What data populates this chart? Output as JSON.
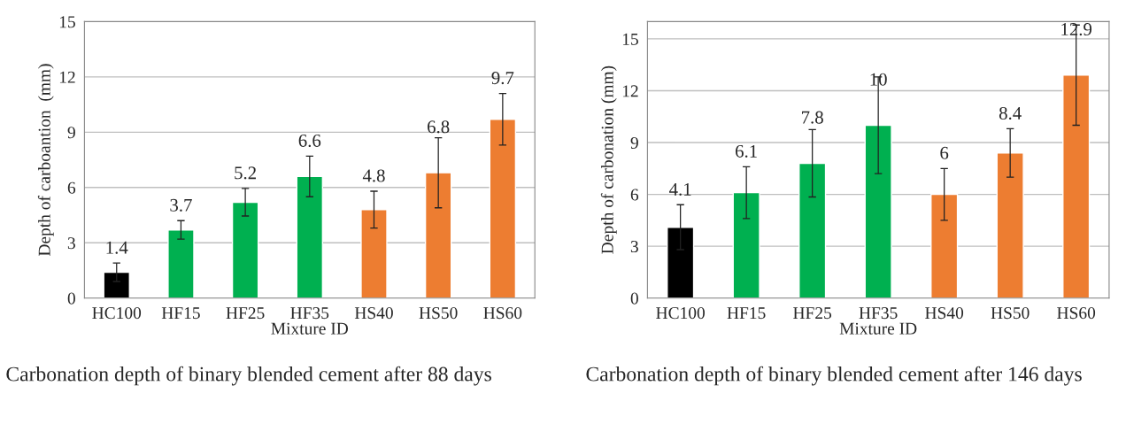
{
  "chart_data": [
    {
      "type": "bar",
      "xlabel": "Mixture ID",
      "ylabel": "Depth of carboantion  (mm)",
      "categories": [
        "HC100",
        "HF15",
        "HF25",
        "HF35",
        "HS40",
        "HS50",
        "HS60"
      ],
      "values": [
        1.4,
        3.7,
        5.2,
        6.6,
        4.8,
        6.8,
        9.7
      ],
      "errors": [
        0.5,
        0.5,
        0.75,
        1.1,
        1.0,
        1.9,
        1.4
      ],
      "colors": [
        "#000000",
        "#00b050",
        "#00b050",
        "#00b050",
        "#ed7d31",
        "#ed7d31",
        "#ed7d31"
      ],
      "ylim": [
        0,
        15
      ],
      "yticks": [
        0,
        3,
        6,
        9,
        12,
        15
      ],
      "grid": "y",
      "data_labels": true,
      "annotations": [
        "Carbonation depth of binary blended cement after 88 days"
      ]
    },
    {
      "type": "bar",
      "xlabel": "Mixture ID",
      "ylabel": "Depth of carbonation (mm)",
      "categories": [
        "HC100",
        "HF15",
        "HF25",
        "HF35",
        "HS40",
        "HS50",
        "HS60"
      ],
      "values": [
        4.1,
        6.1,
        7.8,
        10,
        6,
        8.4,
        12.9
      ],
      "errors": [
        1.3,
        1.5,
        1.95,
        2.8,
        1.5,
        1.4,
        2.9
      ],
      "colors": [
        "#000000",
        "#00b050",
        "#00b050",
        "#00b050",
        "#ed7d31",
        "#ed7d31",
        "#ed7d31"
      ],
      "ylim": [
        0,
        16
      ],
      "yticks": [
        0,
        3,
        6,
        9,
        12,
        15
      ],
      "grid": "y",
      "data_labels": true,
      "annotations": [
        "Carbonation depth of binary blended cement after 146 days"
      ]
    }
  ]
}
